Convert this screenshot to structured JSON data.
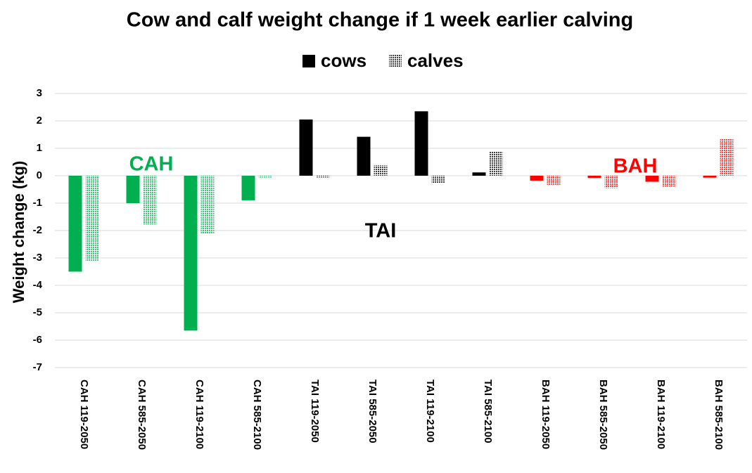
{
  "chart_data": {
    "type": "bar",
    "title": "Cow and calf weight change if 1 week earlier calving",
    "y_label": "Weight change (kg)",
    "categories": [
      "CAH 119-2050",
      "CAH 585-2050",
      "CAH 119-2100",
      "CAH 585-2100",
      "TAI 119-2050",
      "TAI 585-2050",
      "TAI 119-2100",
      "TAI 585-2100",
      "BAH 119-2050",
      "BAH 585-2050",
      "BAH 119-2100",
      "BAH 585-2100"
    ],
    "series": [
      {
        "name": "cows",
        "color": "#000000",
        "pattern": false,
        "colors": [
          "#00b050",
          "#00b050",
          "#00b050",
          "#00b050",
          "#000000",
          "#000000",
          "#000000",
          "#000000",
          "#ff0000",
          "#ff0000",
          "#ff0000",
          "#ff0000"
        ],
        "values": [
          -3.5,
          -1.0,
          -5.65,
          -0.9,
          2.05,
          1.42,
          2.35,
          0.12,
          -0.18,
          -0.08,
          -0.22,
          -0.07
        ]
      },
      {
        "name": "calves",
        "color": "#000000",
        "pattern": true,
        "colors": [
          "#00b050",
          "#00b050",
          "#00b050",
          "#00b050",
          "#000000",
          "#000000",
          "#000000",
          "#000000",
          "#ff0000",
          "#ff0000",
          "#ff0000",
          "#ff0000"
        ],
        "values": [
          -3.1,
          -1.78,
          -2.12,
          -0.07,
          -0.07,
          0.38,
          -0.28,
          0.88,
          -0.33,
          -0.45,
          -0.4,
          1.35
        ]
      }
    ],
    "annotations": [
      {
        "text": "CAH",
        "color": "#00b050"
      },
      {
        "text": "TAI",
        "color": "#000000"
      },
      {
        "text": "BAH",
        "color": "#ff0000"
      }
    ],
    "ylim": [
      -7,
      3
    ],
    "yticks": [
      -7,
      -6,
      -5,
      -4,
      -3,
      -2,
      -1,
      0,
      1,
      2,
      3
    ],
    "grid": true,
    "legend": "top"
  }
}
